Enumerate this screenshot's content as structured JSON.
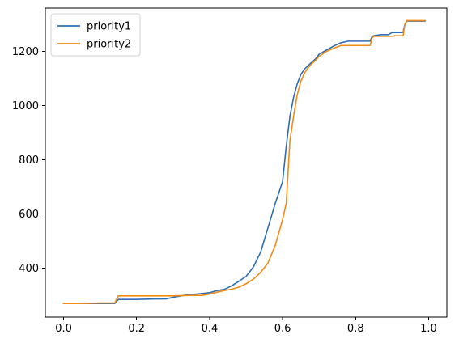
{
  "chart_data": {
    "type": "line",
    "title": "",
    "xlabel": "",
    "ylabel": "",
    "xlim": [
      -0.05,
      1.05
    ],
    "ylim": [
      220,
      1360
    ],
    "x_ticks": [
      0.0,
      0.2,
      0.4,
      0.6,
      0.8,
      1.0
    ],
    "x_tick_labels": [
      "0.0",
      "0.2",
      "0.4",
      "0.6",
      "0.8",
      "1.0"
    ],
    "y_ticks": [
      400,
      600,
      800,
      1000,
      1200
    ],
    "y_tick_labels": [
      "400",
      "600",
      "800",
      "1000",
      "1200"
    ],
    "grid": false,
    "legend_position": "upper-left",
    "series": [
      {
        "name": "priority1",
        "color": "#2f6db5",
        "x": [
          0.0,
          0.05,
          0.1,
          0.14,
          0.15,
          0.2,
          0.25,
          0.28,
          0.3,
          0.33,
          0.35,
          0.38,
          0.4,
          0.42,
          0.44,
          0.46,
          0.48,
          0.5,
          0.52,
          0.54,
          0.56,
          0.58,
          0.6,
          0.61,
          0.62,
          0.63,
          0.64,
          0.65,
          0.66,
          0.67,
          0.68,
          0.69,
          0.7,
          0.72,
          0.74,
          0.76,
          0.78,
          0.8,
          0.82,
          0.84,
          0.845,
          0.85,
          0.87,
          0.89,
          0.9,
          0.91,
          0.93,
          0.935,
          0.94,
          0.96,
          0.99
        ],
        "y": [
          270,
          270,
          270,
          270,
          285,
          285,
          287,
          287,
          293,
          300,
          303,
          307,
          310,
          318,
          322,
          335,
          352,
          370,
          405,
          460,
          550,
          640,
          720,
          850,
          960,
          1030,
          1080,
          1115,
          1135,
          1148,
          1160,
          1172,
          1190,
          1205,
          1220,
          1232,
          1238,
          1238,
          1238,
          1238,
          1255,
          1258,
          1262,
          1262,
          1270,
          1270,
          1270,
          1300,
          1312,
          1312,
          1312
        ]
      },
      {
        "name": "priority2",
        "color": "#f28a14",
        "x": [
          0.0,
          0.05,
          0.1,
          0.14,
          0.15,
          0.2,
          0.25,
          0.3,
          0.35,
          0.38,
          0.4,
          0.42,
          0.44,
          0.46,
          0.48,
          0.5,
          0.52,
          0.54,
          0.56,
          0.58,
          0.6,
          0.61,
          0.62,
          0.63,
          0.64,
          0.65,
          0.66,
          0.67,
          0.68,
          0.69,
          0.7,
          0.72,
          0.74,
          0.76,
          0.78,
          0.8,
          0.82,
          0.84,
          0.845,
          0.85,
          0.87,
          0.89,
          0.9,
          0.91,
          0.93,
          0.935,
          0.94,
          0.96,
          0.99
        ],
        "y": [
          270,
          270,
          272,
          272,
          298,
          298,
          298,
          298,
          300,
          300,
          305,
          312,
          318,
          323,
          330,
          343,
          360,
          385,
          420,
          485,
          580,
          640,
          870,
          960,
          1040,
          1090,
          1120,
          1140,
          1155,
          1167,
          1182,
          1200,
          1212,
          1222,
          1222,
          1222,
          1222,
          1222,
          1250,
          1256,
          1256,
          1256,
          1256,
          1258,
          1258,
          1300,
          1314,
          1314,
          1314
        ]
      }
    ]
  }
}
